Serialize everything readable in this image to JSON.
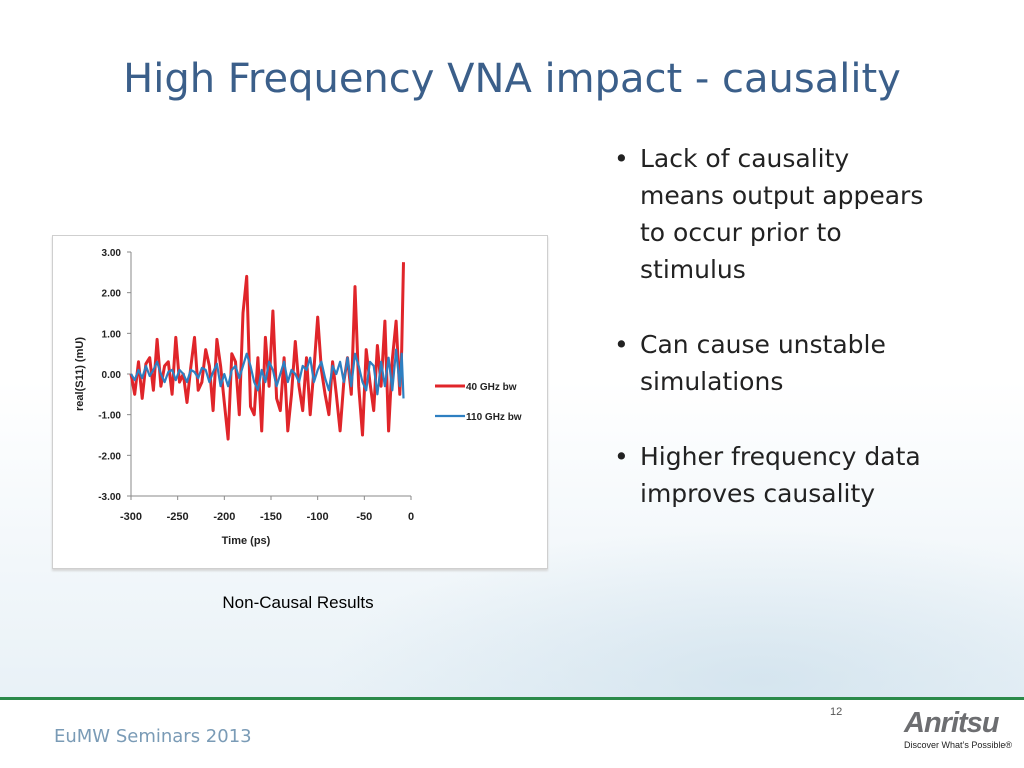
{
  "slide": {
    "title": "High Frequency VNA impact - causality",
    "caption": "Non-Causal Results",
    "bullets": [
      "Lack of causality means output appears to occur prior to stimulus",
      "Can cause unstable simulations",
      "Higher frequency data improves causality"
    ],
    "footer": "EuMW Seminars 2013",
    "page_number": "12",
    "logo_text": "Anritsu",
    "logo_tagline": "Discover What’s Possible®"
  },
  "colors": {
    "title": "#3b5f8a",
    "series_40ghz": "#e0252a",
    "series_110ghz": "#2e7fc1",
    "footer_rule": "#2b8a4a"
  },
  "chart_data": {
    "type": "line",
    "xlabel": "Time (ps)",
    "ylabel": "real(S11) (mU)",
    "xlim": [
      -300,
      0
    ],
    "ylim": [
      -3.0,
      3.0
    ],
    "x_ticks": [
      "-300",
      "-250",
      "-200",
      "-150",
      "-100",
      "-50",
      "0"
    ],
    "y_ticks": [
      "3.00",
      "2.00",
      "1.00",
      "0.00",
      "-1.00",
      "-2.00",
      "-3.00"
    ],
    "legend_position": "right",
    "grid": false,
    "series": [
      {
        "name": "40 GHz bw",
        "color": "#e0252a",
        "x": [
          -300,
          -296,
          -292,
          -288,
          -284,
          -280,
          -276,
          -272,
          -268,
          -264,
          -260,
          -256,
          -252,
          -248,
          -244,
          -240,
          -236,
          -232,
          -228,
          -224,
          -220,
          -216,
          -212,
          -208,
          -204,
          -200,
          -196,
          -192,
          -188,
          -184,
          -180,
          -176,
          -172,
          -168,
          -164,
          -160,
          -156,
          -152,
          -148,
          -144,
          -140,
          -136,
          -132,
          -128,
          -124,
          -120,
          -116,
          -112,
          -108,
          -104,
          -100,
          -96,
          -92,
          -88,
          -84,
          -80,
          -76,
          -72,
          -68,
          -64,
          -60,
          -56,
          -52,
          -48,
          -44,
          -40,
          -36,
          -32,
          -28,
          -24,
          -20,
          -16,
          -12,
          -10,
          -8
        ],
        "y": [
          0.0,
          -0.5,
          0.3,
          -0.6,
          0.25,
          0.4,
          -0.4,
          0.85,
          -0.3,
          0.2,
          0.3,
          -0.5,
          0.9,
          -0.2,
          0.0,
          -0.7,
          0.15,
          0.9,
          -0.4,
          -0.2,
          0.6,
          0.2,
          -0.9,
          0.85,
          0.2,
          -0.7,
          -1.6,
          0.5,
          0.3,
          -1.0,
          1.5,
          2.4,
          -0.8,
          -1.0,
          0.4,
          -1.4,
          0.9,
          -0.3,
          1.55,
          -0.6,
          -0.9,
          0.4,
          -1.4,
          -0.5,
          0.8,
          -0.3,
          -0.9,
          0.4,
          -1.0,
          0.1,
          1.4,
          0.1,
          -0.5,
          -1.0,
          0.3,
          -0.5,
          -1.4,
          -0.2,
          0.4,
          -0.5,
          2.15,
          -0.3,
          -1.5,
          0.6,
          -0.2,
          -0.9,
          0.7,
          -0.3,
          1.3,
          -1.4,
          0.35,
          1.3,
          -0.5,
          0.6,
          2.75
        ]
      },
      {
        "name": "110 GHz bw",
        "color": "#2e7fc1",
        "x": [
          -300,
          -296,
          -292,
          -288,
          -284,
          -280,
          -276,
          -272,
          -268,
          -264,
          -260,
          -256,
          -252,
          -248,
          -244,
          -240,
          -236,
          -232,
          -228,
          -224,
          -220,
          -216,
          -212,
          -208,
          -204,
          -200,
          -196,
          -192,
          -188,
          -184,
          -180,
          -176,
          -172,
          -168,
          -164,
          -160,
          -156,
          -152,
          -148,
          -144,
          -140,
          -136,
          -132,
          -128,
          -124,
          -120,
          -116,
          -112,
          -108,
          -104,
          -100,
          -96,
          -92,
          -88,
          -84,
          -80,
          -76,
          -72,
          -68,
          -64,
          -60,
          -56,
          -52,
          -48,
          -44,
          -40,
          -36,
          -32,
          -28,
          -24,
          -20,
          -16,
          -12,
          -10,
          -8
        ],
        "y": [
          0.0,
          -0.15,
          0.1,
          -0.1,
          0.2,
          -0.05,
          0.1,
          0.3,
          0.0,
          -0.2,
          0.05,
          0.1,
          -0.15,
          0.1,
          0.0,
          -0.2,
          0.1,
          0.05,
          -0.1,
          0.15,
          0.1,
          -0.2,
          0.05,
          0.25,
          -0.3,
          0.0,
          -0.3,
          0.1,
          0.2,
          -0.1,
          0.2,
          0.5,
          0.2,
          -0.2,
          -0.4,
          0.1,
          -0.2,
          0.3,
          0.1,
          -0.3,
          0.0,
          0.3,
          -0.2,
          0.1,
          0.0,
          -0.2,
          0.2,
          0.1,
          0.4,
          -0.2,
          0.1,
          0.3,
          -0.1,
          -0.4,
          0.2,
          0.0,
          0.3,
          -0.2,
          0.4,
          -0.3,
          0.5,
          0.2,
          -0.2,
          -0.4,
          0.3,
          0.2,
          -0.5,
          0.3,
          -0.3,
          0.4,
          -0.4,
          0.6,
          -0.3,
          0.5,
          -0.6
        ]
      }
    ]
  }
}
